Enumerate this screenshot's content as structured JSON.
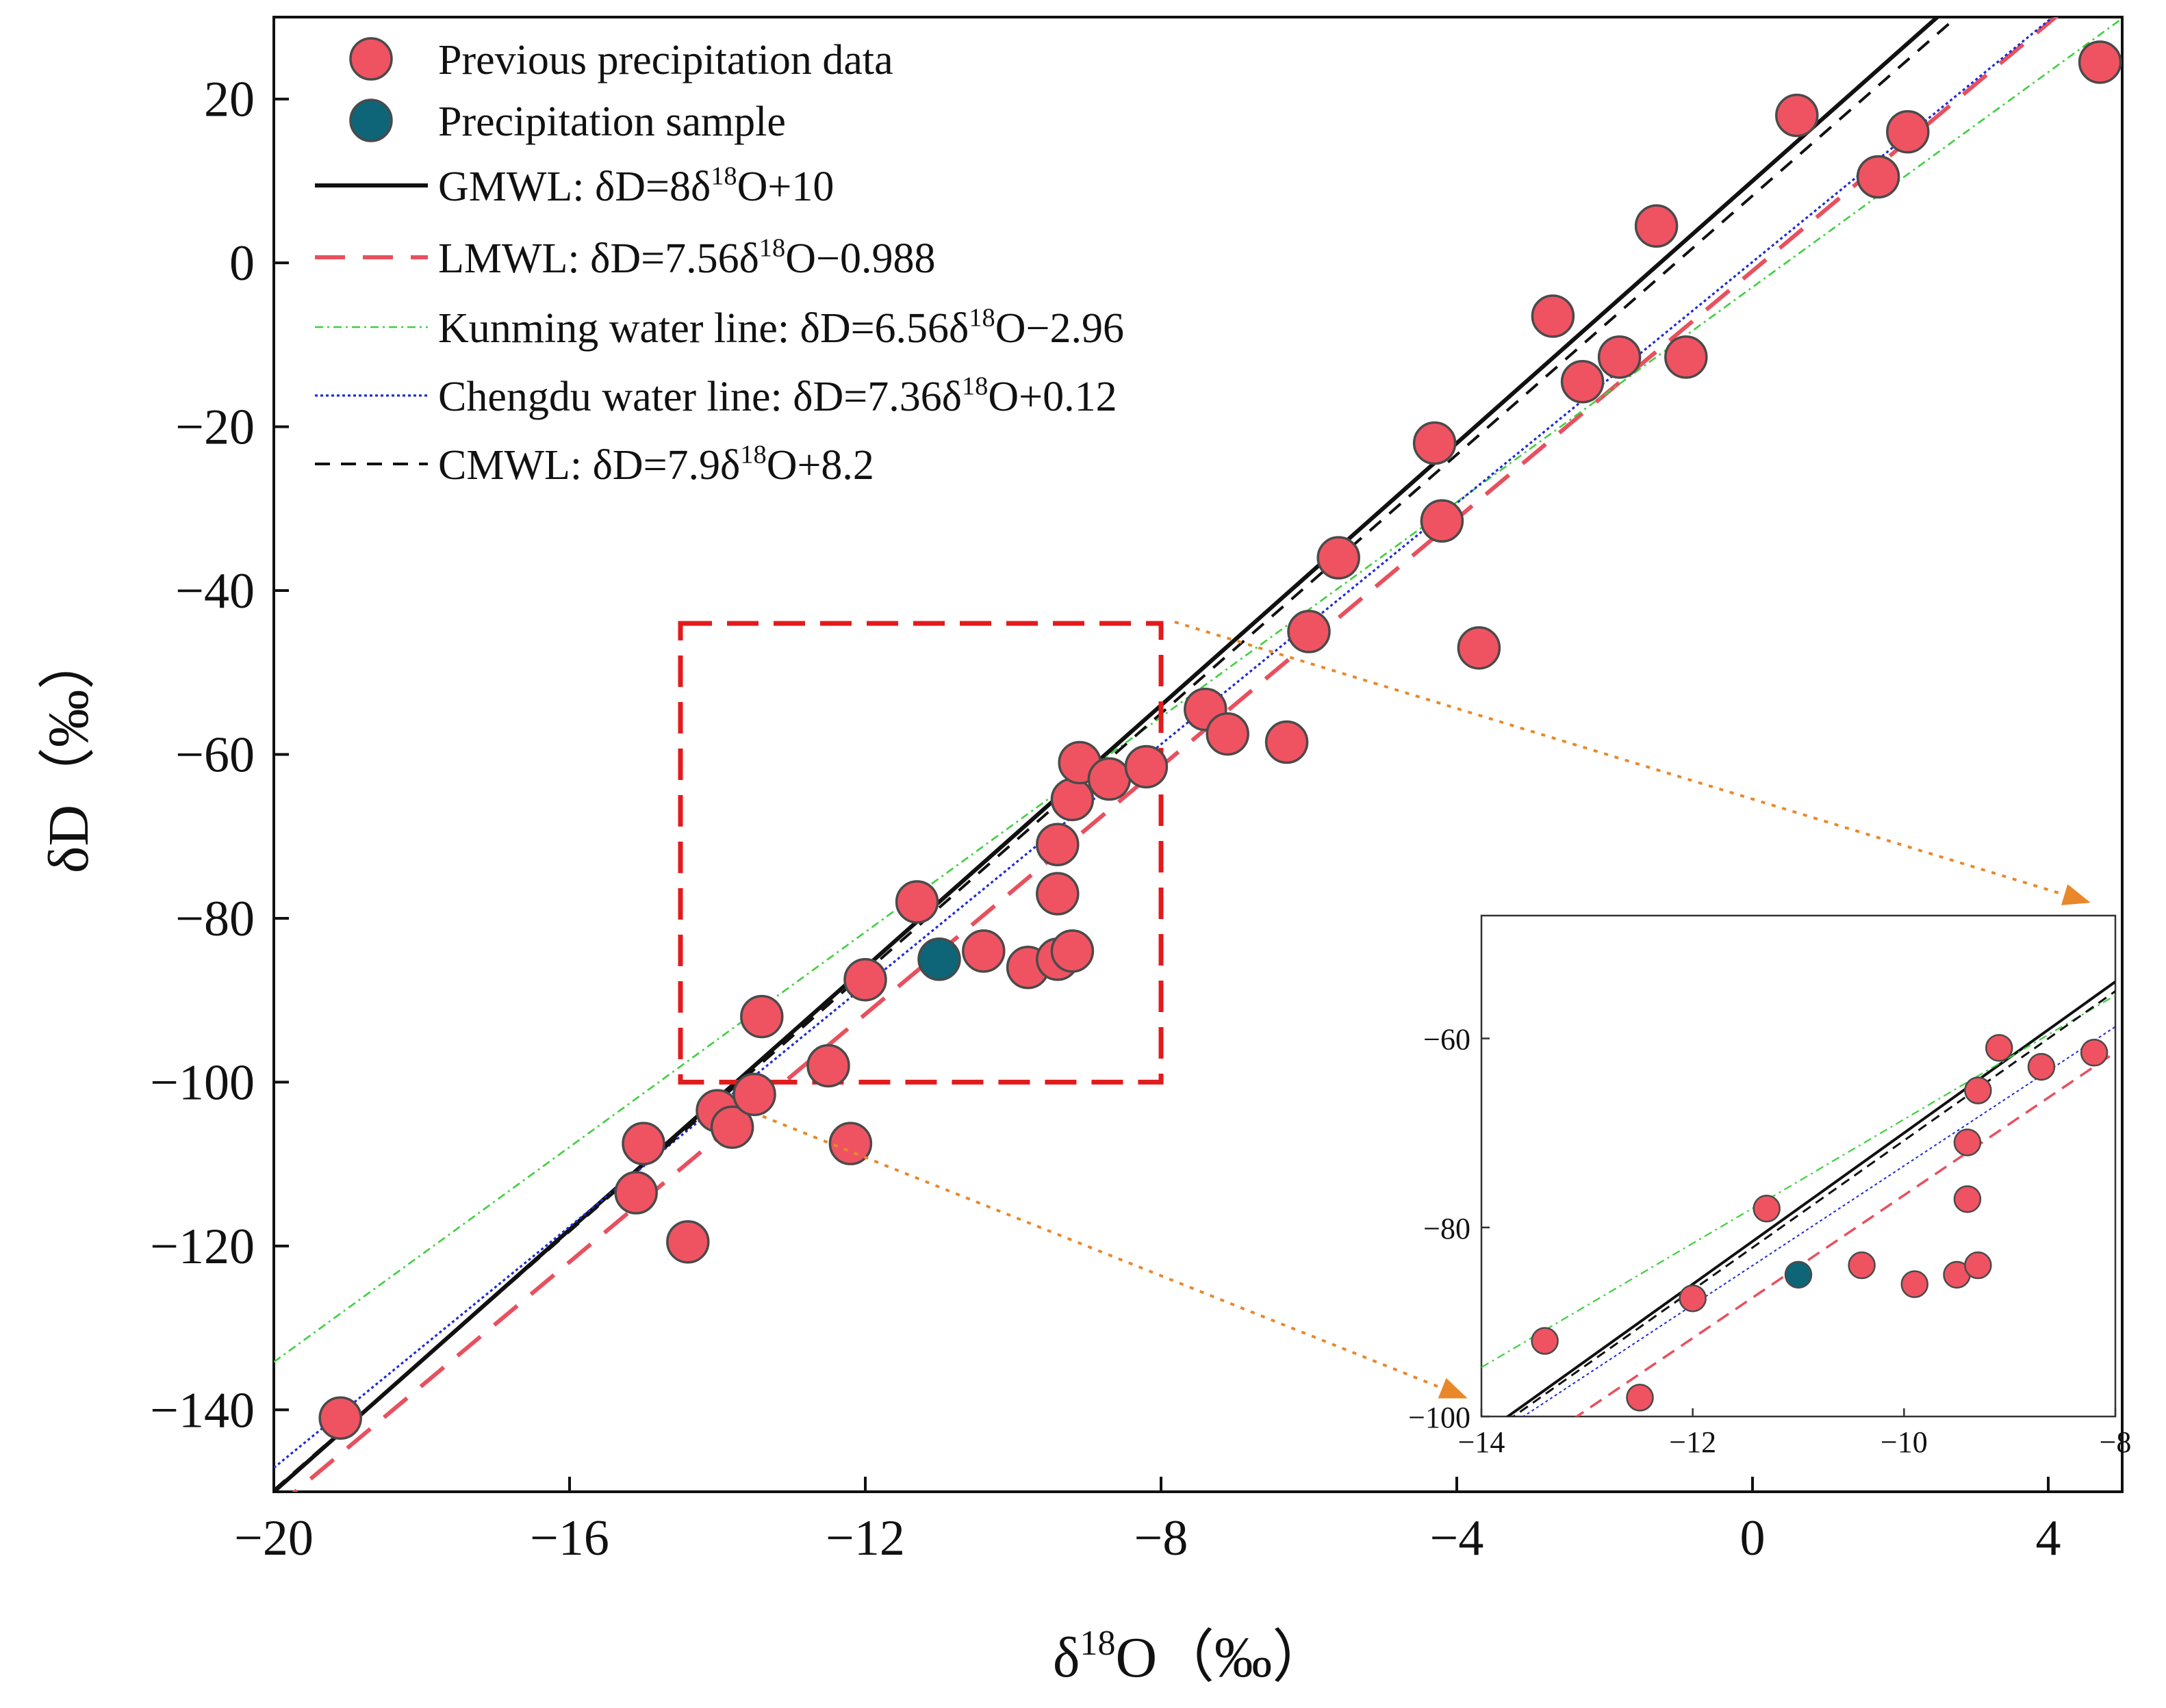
{
  "chart_data": {
    "type": "scatter",
    "xlabel": {
      "base": "δ",
      "sup": "18",
      "rest": "O（‰）"
    },
    "ylabel": "δD（‰）",
    "xlim": [
      -20,
      5
    ],
    "ylim": [
      -150,
      30
    ],
    "xticks": [
      -20,
      -16,
      -12,
      -8,
      -4,
      0,
      4
    ],
    "yticks": [
      -140,
      -120,
      -100,
      -80,
      -60,
      -40,
      -20,
      0,
      20
    ],
    "legend_position": "top-left",
    "series": [
      {
        "name": "Previous precipitation data",
        "color": "#ef5361",
        "points": [
          [
            -19.1,
            -141
          ],
          [
            -15.1,
            -113.5
          ],
          [
            -15.0,
            -107.5
          ],
          [
            -14.4,
            -119.5
          ],
          [
            -14.0,
            -103.5
          ],
          [
            -13.8,
            -105.5
          ],
          [
            -13.4,
            -92.0
          ],
          [
            -13.5,
            -101.5
          ],
          [
            -12.5,
            -98.0
          ],
          [
            -12.2,
            -107.5
          ],
          [
            -12.0,
            -87.5
          ],
          [
            -11.3,
            -78.0
          ],
          [
            -10.4,
            -84.0
          ],
          [
            -9.8,
            -86.0
          ],
          [
            -9.4,
            -85.0
          ],
          [
            -9.2,
            -84.0
          ],
          [
            -9.4,
            -77.0
          ],
          [
            -9.4,
            -71.0
          ],
          [
            -9.2,
            -65.5
          ],
          [
            -9.1,
            -61.0
          ],
          [
            -8.7,
            -63.0
          ],
          [
            -8.2,
            -61.5
          ],
          [
            -7.4,
            -54.5
          ],
          [
            -7.1,
            -57.5
          ],
          [
            -6.3,
            -58.5
          ],
          [
            -6.0,
            -45.0
          ],
          [
            -5.6,
            -36.0
          ],
          [
            -4.3,
            -22.0
          ],
          [
            -4.2,
            -31.5
          ],
          [
            -3.7,
            -47.0
          ],
          [
            -2.7,
            -6.5
          ],
          [
            -2.3,
            -14.5
          ],
          [
            -1.8,
            -11.5
          ],
          [
            -1.3,
            4.5
          ],
          [
            -0.9,
            -11.5
          ],
          [
            0.6,
            18.0
          ],
          [
            1.7,
            10.5
          ],
          [
            2.1,
            16.0
          ],
          [
            4.7,
            24.5
          ]
        ]
      },
      {
        "name": "Precipitation sample",
        "color": "#0e6577",
        "points": [
          [
            -11.0,
            -85.0
          ]
        ]
      }
    ],
    "lines": [
      {
        "id": "gmwl",
        "label": "GMWL: δD=8δ",
        "sup": "18",
        "tail": "O+10",
        "slope": 8,
        "intercept": 10,
        "color": "#111111",
        "style": "solid"
      },
      {
        "id": "lmwl",
        "label": "LMWL: δD=7.56δ",
        "sup": "18",
        "tail": "O−0.988",
        "slope": 7.56,
        "intercept": -0.988,
        "color": "#e8505e",
        "style": "long-dash"
      },
      {
        "id": "kunming",
        "label": "Kunming water line: δD=6.56δ",
        "sup": "18",
        "tail": "O−2.96",
        "slope": 6.56,
        "intercept": -2.96,
        "color": "#3fcf3f",
        "style": "dash-dot"
      },
      {
        "id": "chengdu",
        "label": "Chengdu water line: δD=7.36δ",
        "sup": "18",
        "tail": "O+0.12",
        "slope": 7.36,
        "intercept": 0.12,
        "color": "#1f2ad6",
        "style": "dotted"
      },
      {
        "id": "cmwl",
        "label": "CMWL: δD=7.9δ",
        "sup": "18",
        "tail": "O+8.2",
        "slope": 7.9,
        "intercept": 8.2,
        "color": "#111111",
        "style": "dashed"
      }
    ],
    "zoom_box": {
      "x": [
        -14.5,
        -8
      ],
      "y": [
        -100,
        -44
      ]
    },
    "inset": {
      "xlim": [
        -14,
        -8
      ],
      "ylim": [
        -100,
        -47
      ],
      "xticks": [
        -14,
        -12,
        -10,
        -8
      ],
      "yticks": [
        -100,
        -80,
        -60
      ],
      "points": [
        {
          "x": -13.4,
          "y": -92.0,
          "series": 0
        },
        {
          "x": -12.5,
          "y": -98.0,
          "series": 0
        },
        {
          "x": -12.0,
          "y": -87.5,
          "series": 0
        },
        {
          "x": -11.3,
          "y": -78.0,
          "series": 0
        },
        {
          "x": -10.4,
          "y": -84.0,
          "series": 0
        },
        {
          "x": -9.9,
          "y": -86.0,
          "series": 0
        },
        {
          "x": -9.5,
          "y": -85.0,
          "series": 0
        },
        {
          "x": -9.3,
          "y": -84.0,
          "series": 0
        },
        {
          "x": -9.4,
          "y": -77.0,
          "series": 0
        },
        {
          "x": -9.4,
          "y": -71.0,
          "series": 0
        },
        {
          "x": -9.3,
          "y": -65.5,
          "series": 0
        },
        {
          "x": -9.1,
          "y": -61.0,
          "series": 0
        },
        {
          "x": -8.7,
          "y": -63.0,
          "series": 0
        },
        {
          "x": -8.2,
          "y": -61.5,
          "series": 0
        },
        {
          "x": -11.0,
          "y": -85.0,
          "series": 1
        }
      ]
    }
  }
}
